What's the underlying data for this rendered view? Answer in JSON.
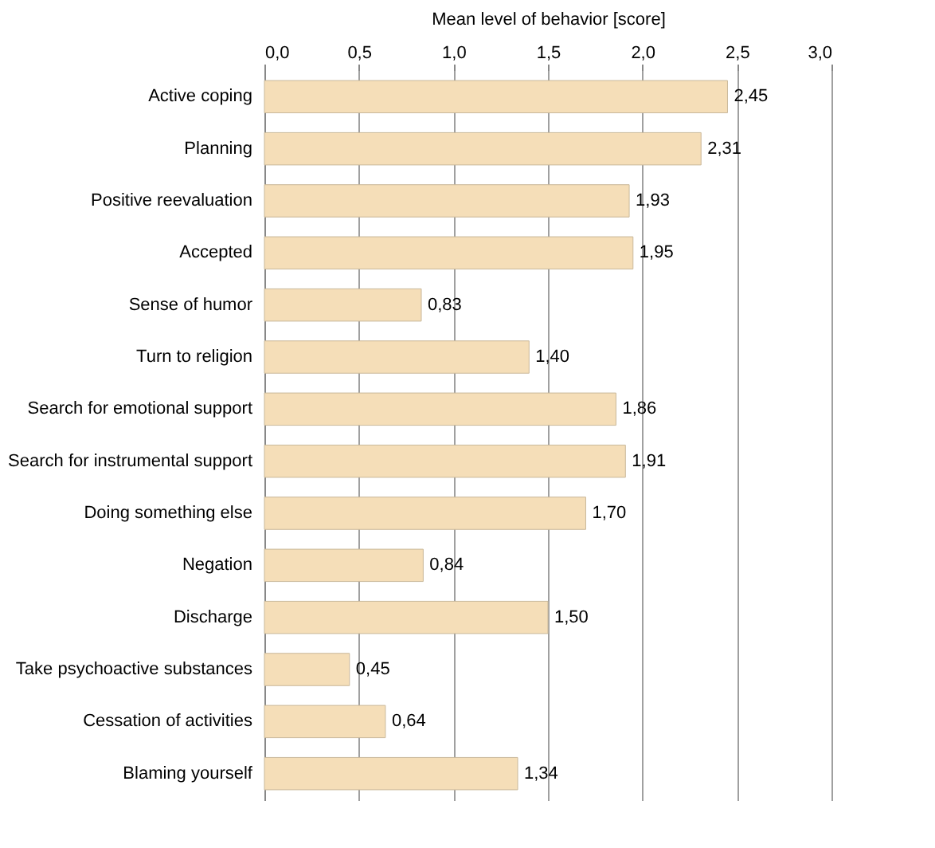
{
  "chart_data": {
    "type": "bar",
    "orientation": "horizontal",
    "xlabel": "Mean level of behavior [score]",
    "categories": [
      "Active coping",
      "Planning",
      "Positive reevaluation",
      "Accepted",
      "Sense of humor",
      "Turn to religion",
      "Search for emotional support",
      "Search for instrumental support",
      "Doing something else",
      "Negation",
      "Discharge",
      "Take psychoactive substances",
      "Cessation of activities",
      "Blaming yourself"
    ],
    "values": [
      2.45,
      2.31,
      1.93,
      1.95,
      0.83,
      1.4,
      1.86,
      1.91,
      1.7,
      0.84,
      1.5,
      0.45,
      0.64,
      1.34
    ],
    "value_labels": [
      "2,45",
      "2,31",
      "1,93",
      "1,95",
      "0,83",
      "1,40",
      "1,86",
      "1,91",
      "1,70",
      "0,84",
      "1,50",
      "0,45",
      "0,64",
      "1,34"
    ],
    "color": "#f5deb8",
    "xlim": [
      0,
      3
    ],
    "xticks": [
      {
        "value": 0,
        "label": "0,0"
      },
      {
        "value": 0.5,
        "label": "0,5"
      },
      {
        "value": 1,
        "label": "1,0"
      },
      {
        "value": 1.5,
        "label": "1,5"
      },
      {
        "value": 2,
        "label": "2,0"
      },
      {
        "value": 2.5,
        "label": "2,5"
      },
      {
        "value": 3,
        "label": "3,0"
      }
    ],
    "grid": "x"
  }
}
